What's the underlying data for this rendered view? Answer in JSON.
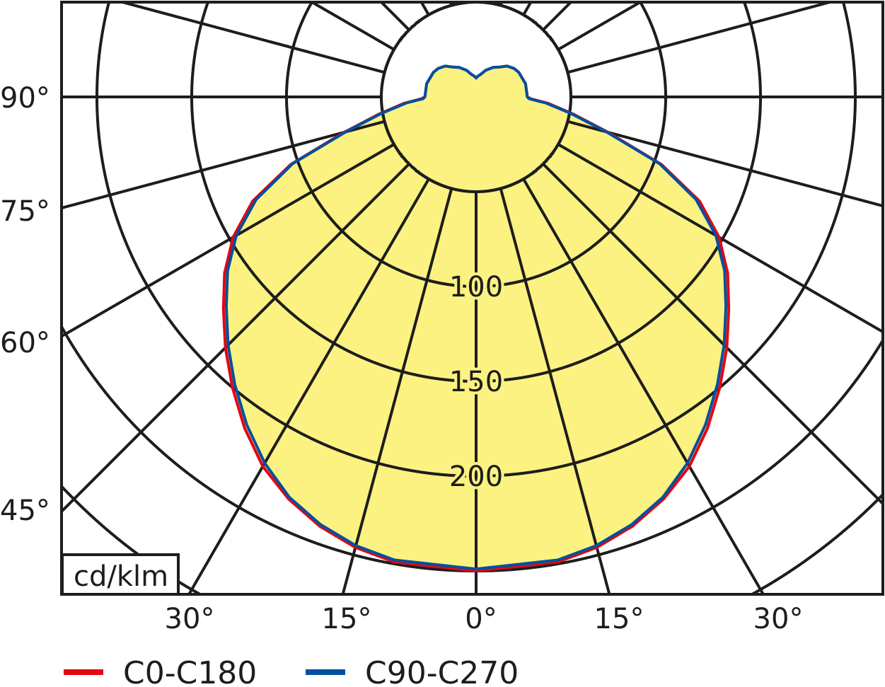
{
  "chart_data": {
    "type": "polar",
    "unit_label": "cd/klm",
    "radial_ticks": [
      100,
      150,
      200
    ],
    "radial_grid_step": 50,
    "angle_grid_step_deg": 15,
    "bottom_angle_labels": [
      "30°",
      "15°",
      "0°",
      "15°",
      "30°"
    ],
    "left_angle_labels": [
      "90°",
      "75°",
      "60°",
      "45°"
    ],
    "angles_deg": [
      0,
      10,
      15,
      20,
      25,
      30,
      35,
      40,
      45,
      50,
      55,
      60,
      65,
      70,
      75,
      80,
      85,
      88,
      90,
      105,
      120,
      127,
      135,
      142,
      150,
      160,
      169,
      175,
      180
    ],
    "series": [
      {
        "name": "C0-C180",
        "color": "#e30613",
        "values": [
          250,
          249,
          246,
          241,
          234,
          225,
          213,
          200,
          187,
          174,
          162,
          148,
          130,
          104,
          72,
          52,
          38,
          29,
          27,
          27,
          26,
          25,
          23,
          20,
          18,
          15,
          12,
          11,
          10
        ]
      },
      {
        "name": "C90-C270",
        "color": "#0050a0",
        "values": [
          249,
          248,
          245,
          240,
          233,
          223,
          211,
          198,
          185,
          172,
          160,
          146,
          128,
          103,
          71,
          51,
          37,
          28,
          27,
          27,
          26,
          25,
          23,
          20,
          18,
          15,
          12,
          11,
          10
        ]
      }
    ],
    "fill_color": "#fbf282"
  }
}
